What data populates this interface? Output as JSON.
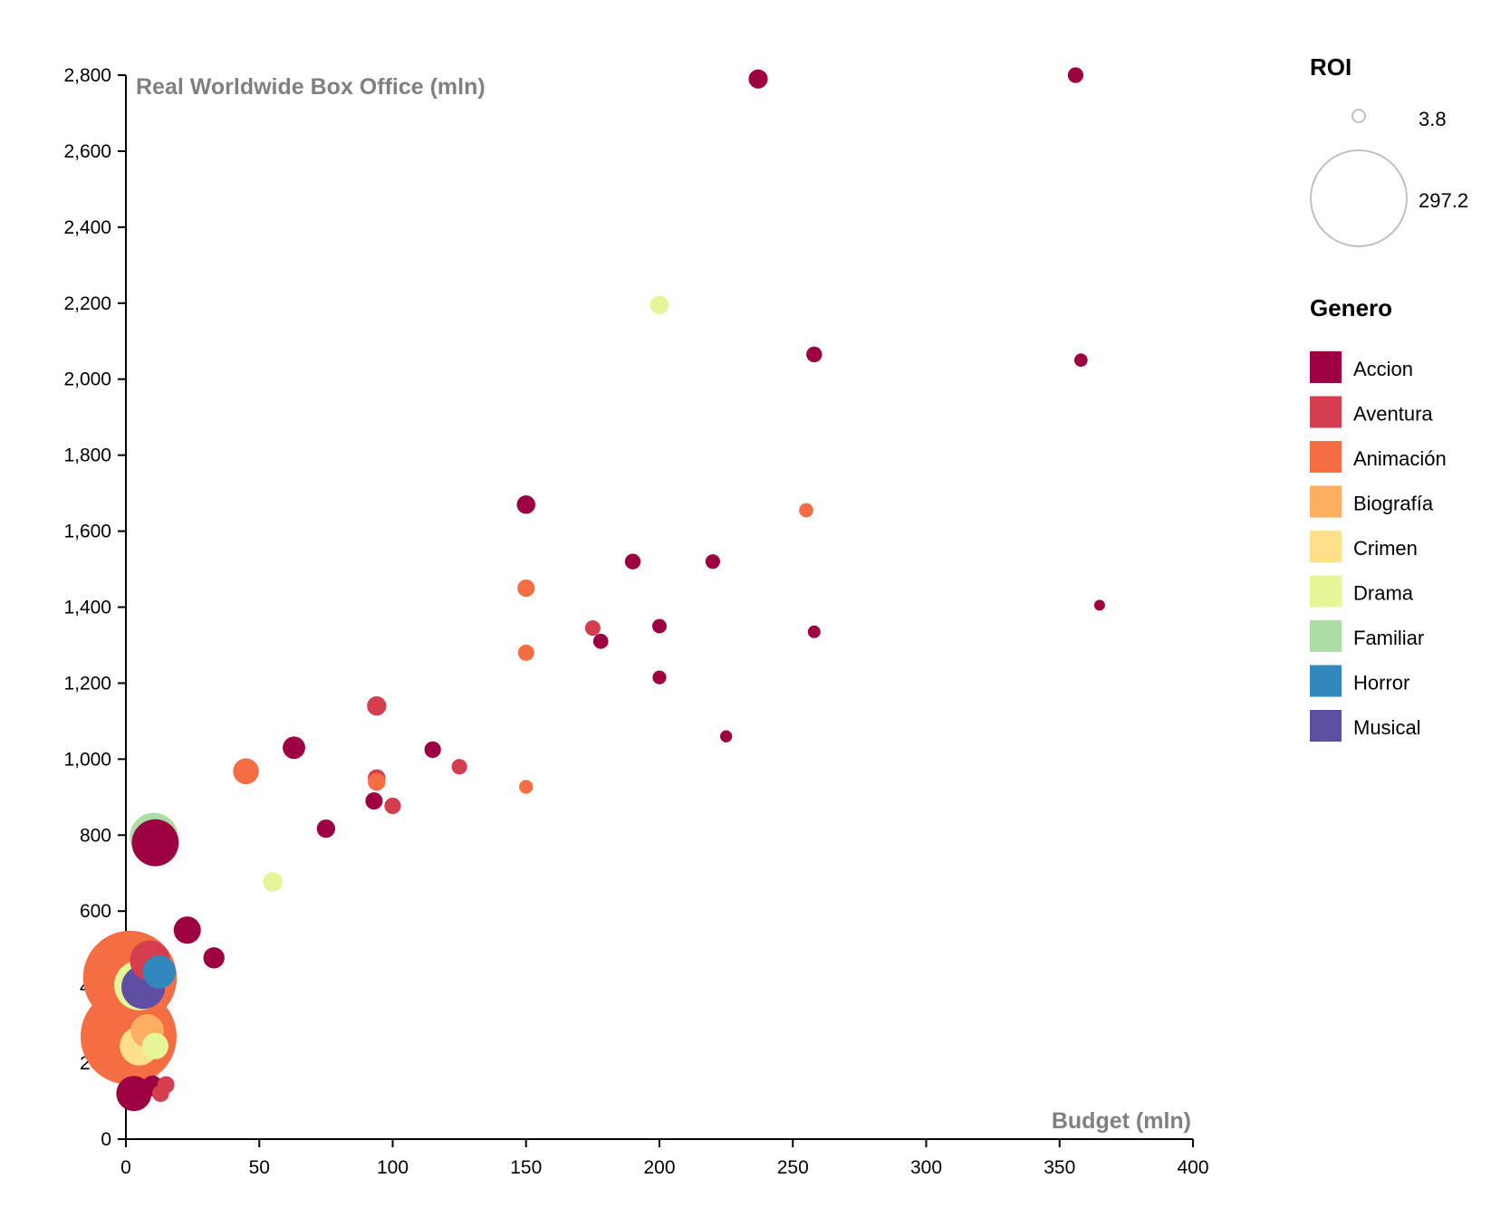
{
  "chart_data": {
    "type": "scatter",
    "xlabel": "Budget (mln)",
    "ylabel": "Real Worldwide Box Office (mln)",
    "xlim": [
      0,
      400
    ],
    "ylim": [
      0,
      2800
    ],
    "x_ticks": [
      0,
      50,
      100,
      150,
      200,
      250,
      300,
      350,
      400
    ],
    "y_ticks": [
      0,
      200,
      400,
      600,
      800,
      1000,
      1200,
      1400,
      1600,
      1800,
      2000,
      2200,
      2400,
      2600,
      2800
    ],
    "size_legend": {
      "title": "ROI",
      "min": 3.8,
      "max": 297.2,
      "min_label": "3.8",
      "max_label": "297.2"
    },
    "color_legend": {
      "title": "Genero",
      "entries": [
        {
          "name": "Accion",
          "color": "#9e0142"
        },
        {
          "name": "Aventura",
          "color": "#d53e4f"
        },
        {
          "name": "Animación",
          "color": "#f46d43"
        },
        {
          "name": "Biografía",
          "color": "#fdae61"
        },
        {
          "name": "Crimen",
          "color": "#fee08b"
        },
        {
          "name": "Drama",
          "color": "#e6f598"
        },
        {
          "name": "Familiar",
          "color": "#abdda4"
        },
        {
          "name": "Horror",
          "color": "#3288bd"
        },
        {
          "name": "Musical",
          "color": "#5e4fa2"
        }
      ]
    },
    "points": [
      {
        "genre": "Accion",
        "budget": 237,
        "box_office": 2790,
        "roi": 11.8
      },
      {
        "genre": "Accion",
        "budget": 356,
        "box_office": 2800,
        "roi": 7.9
      },
      {
        "genre": "Drama",
        "budget": 200,
        "box_office": 2195,
        "roi": 11.0
      },
      {
        "genre": "Accion",
        "budget": 258,
        "box_office": 2065,
        "roi": 8.0
      },
      {
        "genre": "Accion",
        "budget": 358,
        "box_office": 2050,
        "roi": 5.7
      },
      {
        "genre": "Accion",
        "budget": 150,
        "box_office": 1670,
        "roi": 11.1
      },
      {
        "genre": "Animación",
        "budget": 255,
        "box_office": 1655,
        "roi": 6.5
      },
      {
        "genre": "Accion",
        "budget": 190,
        "box_office": 1520,
        "roi": 8.0
      },
      {
        "genre": "Accion",
        "budget": 220,
        "box_office": 1520,
        "roi": 6.9
      },
      {
        "genre": "Animación",
        "budget": 150,
        "box_office": 1450,
        "roi": 9.7
      },
      {
        "genre": "Accion",
        "budget": 365,
        "box_office": 1405,
        "roi": 3.8
      },
      {
        "genre": "Accion",
        "budget": 200,
        "box_office": 1350,
        "roi": 6.7
      },
      {
        "genre": "Aventura",
        "budget": 175,
        "box_office": 1345,
        "roi": 7.7
      },
      {
        "genre": "Accion",
        "budget": 258,
        "box_office": 1335,
        "roi": 5.2
      },
      {
        "genre": "Accion",
        "budget": 178,
        "box_office": 1310,
        "roi": 7.4
      },
      {
        "genre": "Animación",
        "budget": 150,
        "box_office": 1280,
        "roi": 8.5
      },
      {
        "genre": "Accion",
        "budget": 200,
        "box_office": 1215,
        "roi": 6.1
      },
      {
        "genre": "Aventura",
        "budget": 94,
        "box_office": 1140,
        "roi": 12.1
      },
      {
        "genre": "Accion",
        "budget": 225,
        "box_office": 1060,
        "roi": 4.7
      },
      {
        "genre": "Accion",
        "budget": 63,
        "box_office": 1030,
        "roi": 16.3
      },
      {
        "genre": "Accion",
        "budget": 115,
        "box_office": 1025,
        "roi": 8.9
      },
      {
        "genre": "Aventura",
        "budget": 125,
        "box_office": 980,
        "roi": 7.8
      },
      {
        "genre": "Animación",
        "budget": 45,
        "box_office": 968,
        "roi": 21.5
      },
      {
        "genre": "Aventura",
        "budget": 94,
        "box_office": 950,
        "roi": 10.1
      },
      {
        "genre": "Animación",
        "budget": 94,
        "box_office": 940,
        "roi": 10.0
      },
      {
        "genre": "Animación",
        "budget": 150,
        "box_office": 927,
        "roi": 6.2
      },
      {
        "genre": "Accion",
        "budget": 93,
        "box_office": 890,
        "roi": 9.6
      },
      {
        "genre": "Aventura",
        "budget": 100,
        "box_office": 877,
        "roi": 8.8
      },
      {
        "genre": "Accion",
        "budget": 75,
        "box_office": 817,
        "roi": 10.9
      },
      {
        "genre": "Accion",
        "budget": 11,
        "box_office": 780,
        "roi": 70.9
      },
      {
        "genre": "Familiar",
        "budget": 10.5,
        "box_office": 795,
        "roi": 75.7
      },
      {
        "genre": "Drama",
        "budget": 55,
        "box_office": 677,
        "roi": 12.3
      },
      {
        "genre": "Accion",
        "budget": 23,
        "box_office": 550,
        "roi": 23.9
      },
      {
        "genre": "Accion",
        "budget": 33,
        "box_office": 477,
        "roi": 14.5
      },
      {
        "genre": "Aventura",
        "budget": 9,
        "box_office": 470,
        "roi": 52.2
      },
      {
        "genre": "Animación",
        "budget": 1.5,
        "box_office": 425,
        "roi": 283.0
      },
      {
        "genre": "Drama",
        "budget": 5,
        "box_office": 405,
        "roi": 81.0
      },
      {
        "genre": "Horror",
        "budget": 12.5,
        "box_office": 440,
        "roi": 35.2
      },
      {
        "genre": "Musical",
        "budget": 6.5,
        "box_office": 400,
        "roi": 61.5
      },
      {
        "genre": "Animación",
        "budget": 1,
        "box_office": 270,
        "roi": 297.2
      },
      {
        "genre": "Biografía",
        "budget": 8,
        "box_office": 285,
        "roi": 35.6
      },
      {
        "genre": "Crimen",
        "budget": 5,
        "box_office": 245,
        "roi": 49.0
      },
      {
        "genre": "Drama",
        "budget": 11,
        "box_office": 245,
        "roi": 22.3
      },
      {
        "genre": "Accion",
        "budget": 10,
        "box_office": 140,
        "roi": 14.0
      },
      {
        "genre": "Aventura",
        "budget": 15,
        "box_office": 143,
        "roi": 9.5
      },
      {
        "genre": "Aventura",
        "budget": 13,
        "box_office": 120,
        "roi": 9.2
      },
      {
        "genre": "Accion",
        "budget": 3,
        "box_office": 120,
        "roi": 40.0
      }
    ]
  }
}
